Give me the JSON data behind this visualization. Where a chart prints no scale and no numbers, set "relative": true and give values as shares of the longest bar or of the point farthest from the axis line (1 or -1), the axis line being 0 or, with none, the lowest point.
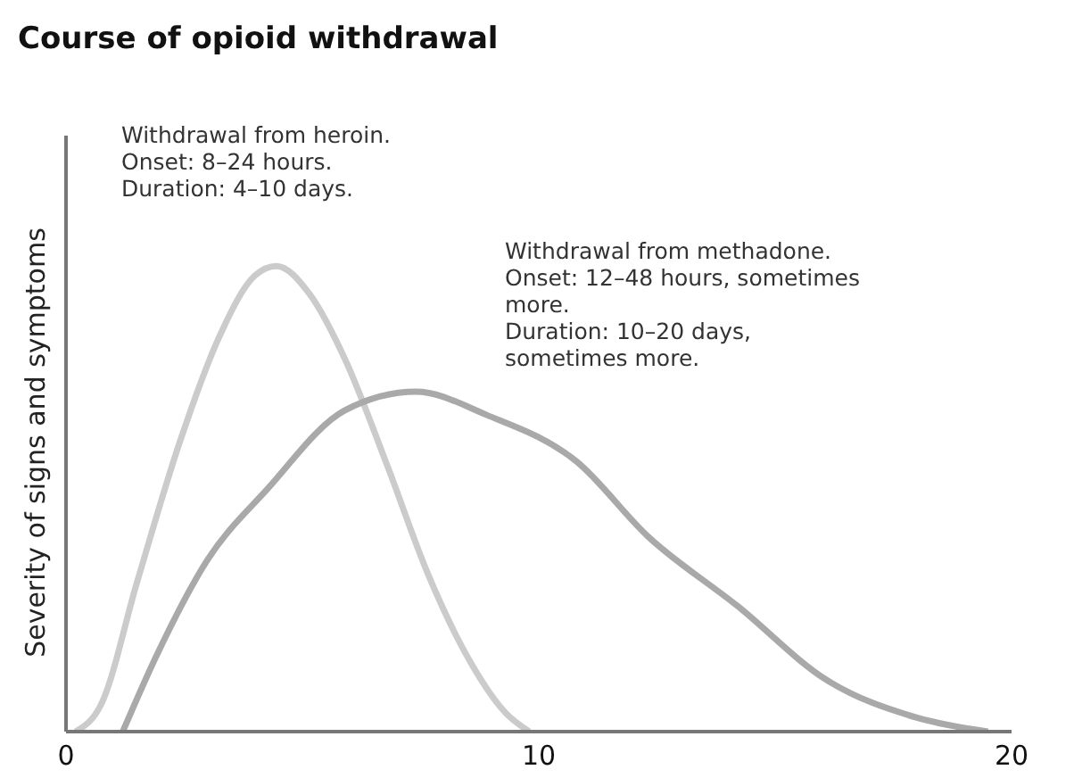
{
  "chart_data": {
    "type": "line",
    "title": "Course of opioid withdrawal",
    "ylabel": "Severity of signs and symptoms",
    "relative": true,
    "xlim": [
      0,
      20
    ],
    "xticks": [
      0,
      10,
      20
    ],
    "grid": false,
    "legend": false,
    "marker": "none",
    "line_style": "solid",
    "annotations": [
      "Withdrawal from heroin.\nOnset: 8–24 hours.\nDuration: 4–10 days.",
      "Withdrawal from methadone.\nOnset: 12–48 hours, sometimes more.\nDuration: 10–20 days, sometimes more."
    ],
    "series": [
      {
        "color": "#cbcbcb",
        "x": [
          0.2,
          0.75,
          1.5,
          2.4,
          3.25,
          4.0,
          4.45,
          5.15,
          5.9,
          6.8,
          7.65,
          8.55,
          9.3,
          9.8
        ],
        "values": [
          0,
          0.06,
          0.32,
          0.62,
          0.85,
          0.98,
          1,
          0.94,
          0.8,
          0.57,
          0.34,
          0.15,
          0.04,
          0
        ]
      },
      {
        "color": "#a9a9a9",
        "x": [
          1.2,
          1.9,
          3.0,
          4.25,
          5.9,
          7.4,
          8.9,
          10.8,
          12.3,
          14.2,
          16.1,
          18.0,
          19.5
        ],
        "values": [
          0,
          0.16,
          0.37,
          0.52,
          0.69,
          0.73,
          0.68,
          0.58,
          0.42,
          0.27,
          0.11,
          0.03,
          0
        ]
      }
    ]
  }
}
